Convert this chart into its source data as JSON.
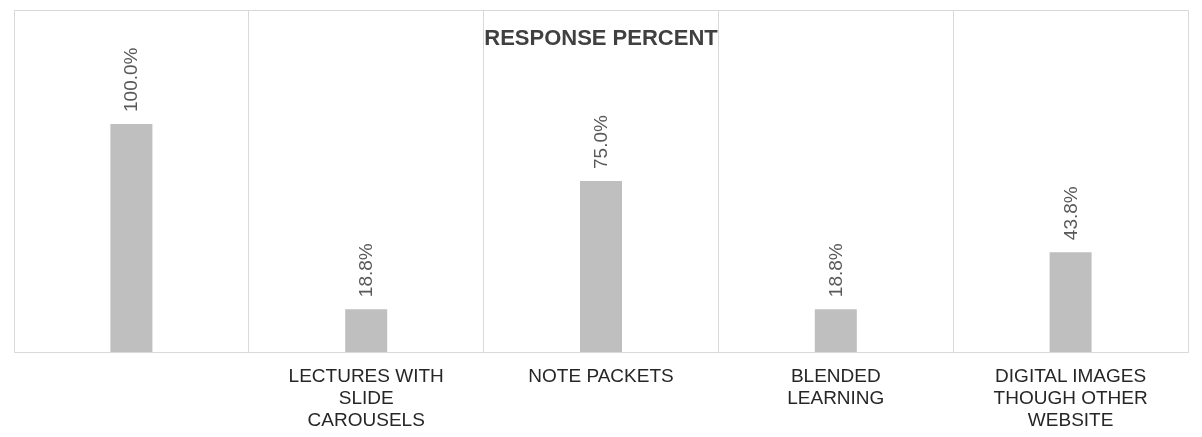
{
  "chart_data": {
    "type": "bar",
    "title": "RESPONSE PERCENT",
    "categories": [
      null,
      "LECTURES WITH SLIDE CAROUSELS",
      "NOTE PACKETS",
      "BLENDED LEARNING",
      "DIGITAL IMAGES THOUGH OTHER WEBSITE"
    ],
    "values": [
      100.0,
      18.8,
      75.0,
      18.8,
      43.8
    ],
    "value_labels": [
      "100.0%",
      "18.8%",
      "75.0%",
      "18.8%",
      "43.8%"
    ],
    "color": "#bfbfbf",
    "grid": "x"
  }
}
